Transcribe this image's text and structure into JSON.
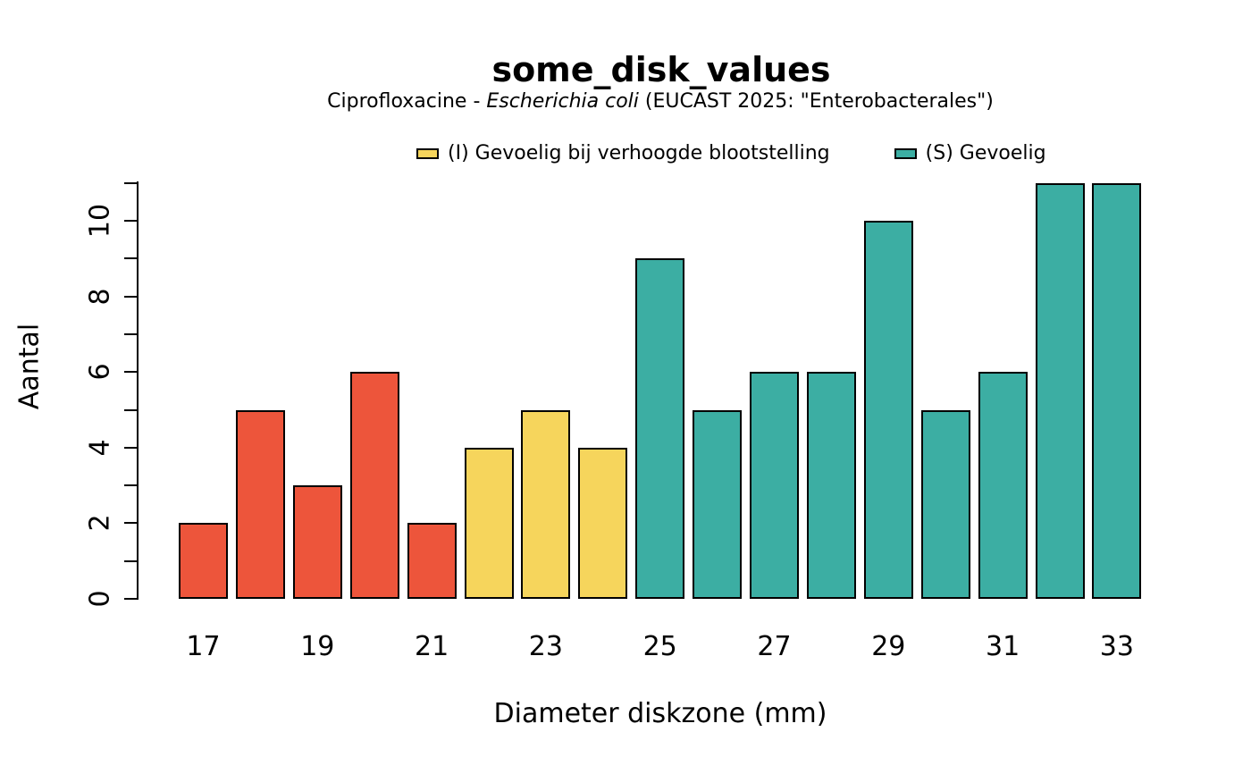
{
  "chart_data": {
    "type": "bar",
    "title": "some_disk_values",
    "subtitle": {
      "prefix": "Ciprofloxacine - ",
      "italic": "Escherichia coli",
      "suffix": " (EUCAST 2025: \"Enterobacterales\")"
    },
    "xlabel": "Diameter diskzone (mm)",
    "ylabel": "Aantal",
    "ylim": [
      0,
      11
    ],
    "ytick_minor_step": 1,
    "ytick_labels": [
      "0",
      "2",
      "4",
      "6",
      "8",
      "10"
    ],
    "ytick_label_values": [
      0,
      2,
      4,
      6,
      8,
      10
    ],
    "xtick_labels": [
      "17",
      "19",
      "21",
      "23",
      "25",
      "27",
      "29",
      "31",
      "33"
    ],
    "categories": [
      17,
      18,
      19,
      20,
      21,
      22,
      23,
      24,
      25,
      26,
      27,
      28,
      29,
      30,
      31,
      32,
      33
    ],
    "values": [
      2,
      5,
      3,
      6,
      2,
      4,
      5,
      4,
      9,
      5,
      6,
      6,
      10,
      5,
      6,
      11,
      11
    ],
    "sir_group": [
      "R",
      "R",
      "R",
      "R",
      "R",
      "I",
      "I",
      "I",
      "S",
      "S",
      "S",
      "S",
      "S",
      "S",
      "S",
      "S",
      "S"
    ],
    "colors": {
      "R": "#ED553B",
      "I": "#F6D55C",
      "S": "#3CAEA3"
    },
    "bar_border_color": "#000000",
    "legend_position": "top",
    "grid": false,
    "legend": [
      {
        "key": "I",
        "label": "(I) Gevoelig bij verhoogde blootstelling",
        "color": "#F6D55C"
      },
      {
        "key": "S",
        "label": "(S) Gevoelig",
        "color": "#3CAEA3"
      }
    ]
  }
}
